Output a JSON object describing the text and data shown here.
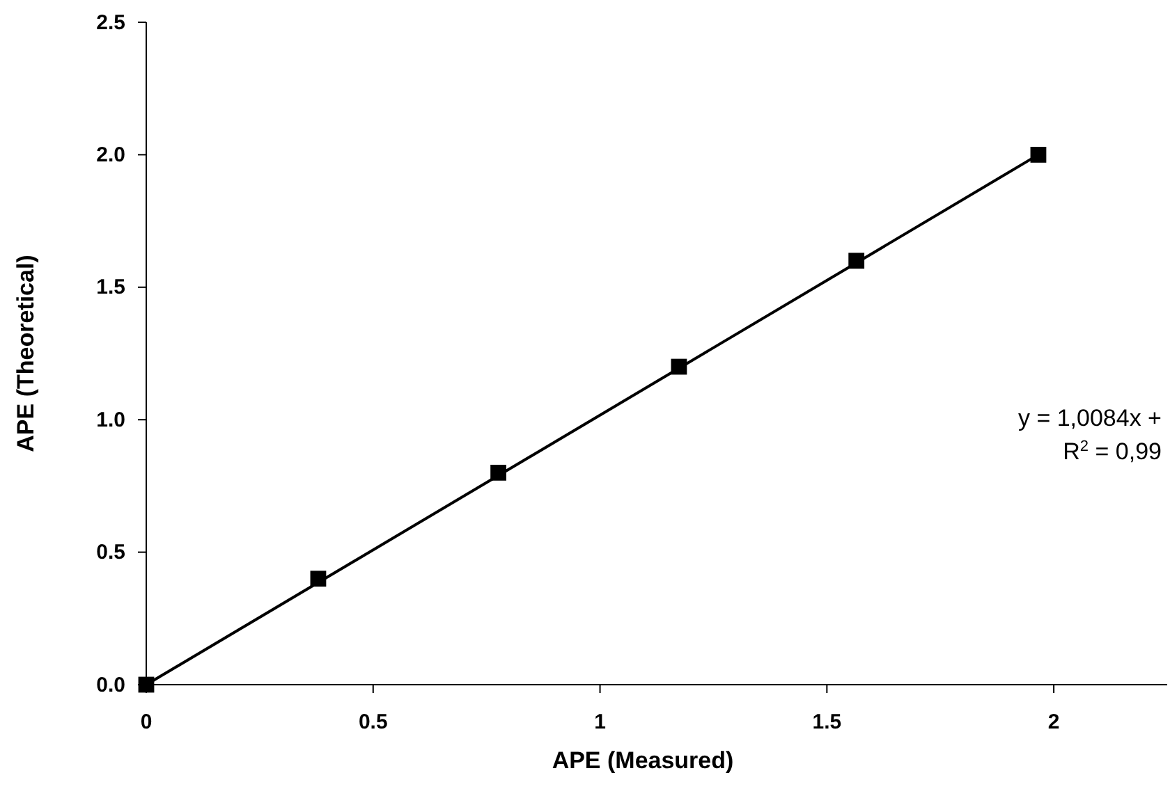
{
  "chart_data": {
    "type": "scatter",
    "xlabel": "APE (Measured)",
    "ylabel": "APE (Theoretical)",
    "xlim": [
      0,
      2.25
    ],
    "xticks": [
      0,
      0.5,
      1,
      1.5,
      2
    ],
    "ylim": [
      0,
      2.5
    ],
    "yticks": [
      {
        "value": 0,
        "label": "0.0"
      },
      {
        "value": 0.5,
        "label": "0.5"
      },
      {
        "value": 1,
        "label": "1.0"
      },
      {
        "value": 1.5,
        "label": "1.5"
      },
      {
        "value": 2,
        "label": "2.0"
      },
      {
        "value": 2.5,
        "label": "2.5"
      }
    ],
    "grid": false,
    "marker": "square",
    "series": [
      {
        "type": "line",
        "marker": "none",
        "color": "#000000",
        "x": [
          0,
          1.966
        ],
        "values": [
          0,
          2.0
        ]
      },
      {
        "color": "#000000",
        "x": [
          0,
          0.379,
          0.776,
          1.174,
          1.565,
          1.966
        ],
        "values": [
          0,
          0.4,
          0.8,
          1.2,
          1.6,
          2.0
        ]
      }
    ],
    "annotations": [
      "y = 1,0084x +",
      "R$^{2}$ = 0,99"
    ]
  }
}
